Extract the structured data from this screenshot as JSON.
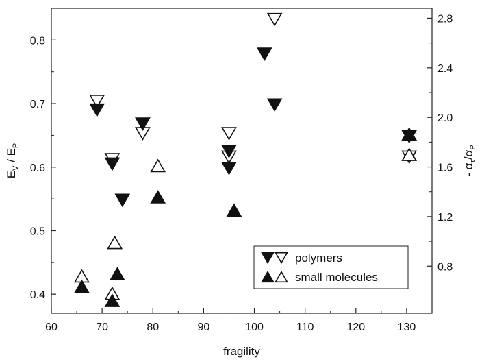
{
  "chart_data": {
    "type": "scatter",
    "xlabel": "fragility",
    "ylabel_left": {
      "main": "E",
      "sub1": "V",
      "mid": " / E",
      "sub2": "P"
    },
    "ylabel_right": {
      "pre": "- α",
      "sub1": "τ",
      "mid": "/α",
      "sub2": "P"
    },
    "xlim": [
      60,
      135
    ],
    "ylim_left": [
      0.37,
      0.85
    ],
    "ylim_right": [
      0.42,
      2.88
    ],
    "x_ticks": [
      60,
      70,
      80,
      90,
      100,
      110,
      120,
      130
    ],
    "y_left_ticks": [
      0.4,
      0.5,
      0.6,
      0.7,
      0.8
    ],
    "y_right_ticks": [
      0.8,
      1.2,
      1.6,
      2.0,
      2.4,
      2.8
    ],
    "legend": {
      "placement": "lower-right",
      "entries": [
        {
          "markers": [
            "filled-down-triangle",
            "open-down-triangle"
          ],
          "label": "polymers"
        },
        {
          "markers": [
            "filled-up-triangle",
            "open-up-triangle"
          ],
          "label": "small molecules"
        }
      ]
    },
    "series": [
      {
        "name": "polymers",
        "marker": "filled-down-triangle",
        "axis": "left",
        "points": [
          [
            69,
            0.69
          ],
          [
            72,
            0.605
          ],
          [
            74,
            0.548
          ],
          [
            78,
            0.668
          ],
          [
            95,
            0.598
          ],
          [
            95,
            0.625
          ],
          [
            102,
            0.778
          ],
          [
            104,
            0.698
          ],
          [
            130.5,
            0.648
          ]
        ]
      },
      {
        "name": "polymers",
        "marker": "open-down-triangle",
        "axis": "right",
        "points": [
          [
            69,
            2.13
          ],
          [
            72,
            1.66
          ],
          [
            78,
            1.87
          ],
          [
            95,
            1.68
          ],
          [
            95,
            1.87
          ],
          [
            104,
            2.79
          ],
          [
            130.5,
            1.68
          ]
        ]
      },
      {
        "name": "small molecules",
        "marker": "filled-up-triangle",
        "axis": "left",
        "points": [
          [
            66,
            0.412
          ],
          [
            72,
            0.39
          ],
          [
            73,
            0.432
          ],
          [
            81,
            0.553
          ],
          [
            96,
            0.532
          ],
          [
            130.5,
            0.652
          ]
        ]
      },
      {
        "name": "small molecules",
        "marker": "open-up-triangle",
        "axis": "right",
        "points": [
          [
            66,
            0.72
          ],
          [
            72,
            0.58
          ],
          [
            72.5,
            0.99
          ],
          [
            81,
            1.61
          ],
          [
            96,
            1.25
          ],
          [
            130.5,
            1.7
          ]
        ]
      }
    ]
  }
}
